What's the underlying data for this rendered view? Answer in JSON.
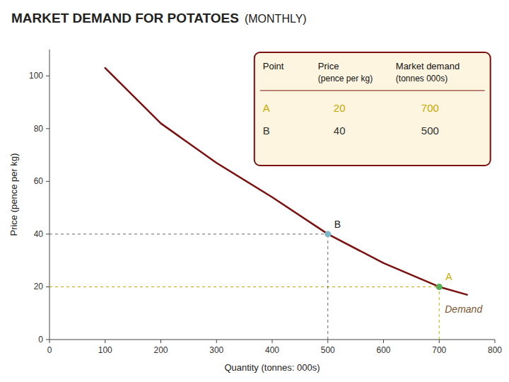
{
  "chart_data": {
    "type": "line",
    "title": "MARKET DEMAND FOR POTATOES",
    "subtitle": "(MONTHLY)",
    "x_label": "Quantity (tonnes: 000s)",
    "y_label": "Price (pence per kg)",
    "x": [
      100,
      200,
      300,
      400,
      500,
      600,
      700,
      750
    ],
    "series": [
      {
        "name": "Demand",
        "color": "#7b1010",
        "label_color": "#7b5530",
        "values": [
          103,
          82,
          67,
          54,
          40,
          29,
          20,
          17
        ]
      }
    ],
    "points": [
      {
        "label": "A",
        "x": 700,
        "y": 20,
        "color": "#5ab05a",
        "guide_color": "#c8a800",
        "label_color": "#c8a800",
        "row_color": "#c8a800"
      },
      {
        "label": "B",
        "x": 500,
        "y": 40,
        "color": "#7ab8c8",
        "guide_color": "#666666",
        "label_color": "#222222",
        "row_color": "#333333"
      }
    ],
    "table": {
      "headers": [
        "Point",
        "Price",
        "Market demand"
      ],
      "units": [
        null,
        "(pence per kg)",
        "(tonnes 000s)"
      ],
      "border_color": "#7b1010",
      "color": "#fdf5e0"
    },
    "xlim": [
      0,
      800
    ],
    "ylim": [
      0,
      110
    ],
    "xticks": [
      0,
      100,
      200,
      300,
      400,
      500,
      600,
      700,
      800
    ],
    "yticks": [
      0,
      20,
      40,
      60,
      80,
      100
    ],
    "grid": false
  }
}
